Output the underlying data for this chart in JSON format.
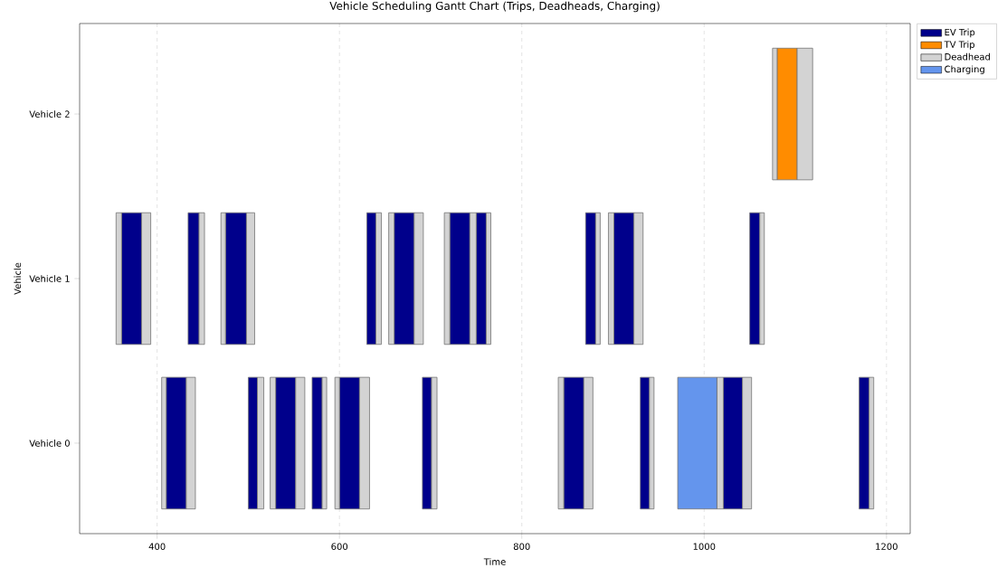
{
  "chart_data": {
    "type": "bar",
    "orientation": "horizontal",
    "title": "Vehicle Scheduling Gantt Chart (Trips, Deadheads, Charging)",
    "xlabel": "Time",
    "ylabel": "Vehicle",
    "categories": [
      "Vehicle 2",
      "Vehicle 1",
      "Vehicle 0"
    ],
    "xlim": [
      315,
      1226
    ],
    "xticks": [
      400,
      600,
      800,
      1000,
      1200
    ],
    "grid": "x",
    "legend": "top right",
    "series": [
      {
        "name": "EV Trip",
        "color": "#00008b",
        "base": [
          null,
          361,
          410
        ],
        "values": [
          null,
          22,
          22
        ]
      },
      {
        "color": "#00008b",
        "base": [
          null,
          434,
          500
        ],
        "values": [
          null,
          12,
          10
        ]
      },
      {
        "color": "#00008b",
        "base": [
          null,
          475,
          530
        ],
        "values": [
          null,
          23,
          22
        ]
      },
      {
        "color": "#00008b",
        "base": [
          null,
          630,
          570
        ],
        "values": [
          null,
          10,
          11
        ]
      },
      {
        "color": "#00008b",
        "base": [
          null,
          660,
          600
        ],
        "values": [
          null,
          22,
          22
        ]
      },
      {
        "color": "#00008b",
        "base": [
          null,
          721,
          691
        ],
        "values": [
          null,
          22,
          10
        ]
      },
      {
        "color": "#00008b",
        "base": [
          null,
          750,
          846
        ],
        "values": [
          null,
          11,
          22
        ]
      },
      {
        "color": "#00008b",
        "base": [
          null,
          870,
          930
        ],
        "values": [
          null,
          11,
          10
        ]
      },
      {
        "color": "#00008b",
        "base": [
          null,
          901,
          1021
        ],
        "values": [
          null,
          22,
          21
        ]
      },
      {
        "color": "#00008b",
        "base": [
          null,
          1050,
          1170
        ],
        "values": [
          null,
          11,
          11
        ]
      },
      {
        "name": "TV Trip",
        "color": "#ff8c00",
        "base": [
          1080,
          null,
          null
        ],
        "values": [
          22,
          null,
          null
        ]
      },
      {
        "name": "Deadhead",
        "color": "#d3d3d3",
        "base": [
          1075,
          355,
          405
        ],
        "values": [
          5,
          6,
          5
        ]
      },
      {
        "color": "#d3d3d3",
        "base": [
          1102,
          383,
          432
        ],
        "values": [
          17,
          10,
          10
        ]
      },
      {
        "color": "#d3d3d3",
        "base": [
          null,
          446,
          510
        ],
        "values": [
          null,
          6,
          7
        ]
      },
      {
        "color": "#d3d3d3",
        "base": [
          null,
          470,
          524
        ],
        "values": [
          null,
          5,
          6
        ]
      },
      {
        "color": "#d3d3d3",
        "base": [
          null,
          498,
          552
        ],
        "values": [
          null,
          9,
          10
        ]
      },
      {
        "color": "#d3d3d3",
        "base": [
          null,
          640,
          581
        ],
        "values": [
          null,
          6,
          5
        ]
      },
      {
        "color": "#d3d3d3",
        "base": [
          null,
          654,
          595
        ],
        "values": [
          null,
          6,
          5
        ]
      },
      {
        "color": "#d3d3d3",
        "base": [
          null,
          682,
          622
        ],
        "values": [
          null,
          10,
          11
        ]
      },
      {
        "color": "#d3d3d3",
        "base": [
          null,
          715,
          701
        ],
        "values": [
          null,
          6,
          6
        ]
      },
      {
        "color": "#d3d3d3",
        "base": [
          null,
          743,
          840
        ],
        "values": [
          null,
          7,
          6
        ]
      },
      {
        "color": "#d3d3d3",
        "base": [
          null,
          761,
          868
        ],
        "values": [
          null,
          5,
          10
        ]
      },
      {
        "color": "#d3d3d3",
        "base": [
          null,
          881,
          940
        ],
        "values": [
          null,
          5,
          5
        ]
      },
      {
        "color": "#d3d3d3",
        "base": [
          null,
          895,
          1014
        ],
        "values": [
          null,
          6,
          7
        ]
      },
      {
        "color": "#d3d3d3",
        "base": [
          null,
          923,
          1042
        ],
        "values": [
          null,
          10,
          10
        ]
      },
      {
        "color": "#d3d3d3",
        "base": [
          null,
          1061,
          1181
        ],
        "values": [
          null,
          5,
          5
        ]
      },
      {
        "name": "Charging",
        "color": "#6495ed",
        "base": [
          null,
          null,
          971
        ],
        "values": [
          null,
          null,
          43
        ]
      }
    ]
  }
}
